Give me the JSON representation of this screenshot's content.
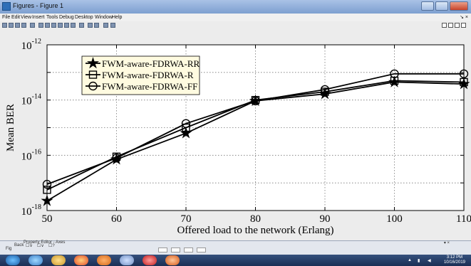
{
  "window": {
    "title": "Figures - Figure 1"
  },
  "menu": [
    "File",
    "Edit",
    "View",
    "Insert",
    "Tools",
    "Debug",
    "Desktop",
    "Window",
    "Help"
  ],
  "menu_right": "↘ ×",
  "icons": {
    "toolbar": [
      "new-figure-icon",
      "open-icon",
      "save-icon",
      "print-icon",
      "edit-plot-icon",
      "zoom-in-icon",
      "zoom-out-icon",
      "pan-icon",
      "rotate-icon",
      "data-cursor-icon",
      "brush-icon",
      "link-icon",
      "colorbar-icon",
      "legend-icon",
      "hide-plot-tools-icon",
      "show-plot-tools-icon"
    ],
    "dock": [
      "tile-icon",
      "split-horizontal-icon",
      "split-vertical-icon",
      "undock-icon"
    ]
  },
  "chart_data": {
    "type": "line",
    "xlabel": "Offered load to the network (Erlang)",
    "ylabel": "Mean BER",
    "x": [
      50,
      60,
      70,
      80,
      90,
      100,
      110
    ],
    "xlim": [
      50,
      110
    ],
    "ylim_exponent": [
      -18,
      -12
    ],
    "yscale": "log",
    "ytick_labels": [
      {
        "base": "10",
        "exp": "-12",
        "value_exp": -12
      },
      {
        "base": "10",
        "exp": "-14",
        "value_exp": -14
      },
      {
        "base": "10",
        "exp": "-16",
        "value_exp": -16
      },
      {
        "base": "10",
        "exp": "-18",
        "value_exp": -18
      }
    ],
    "xtick_labels": [
      "50",
      "60",
      "70",
      "80",
      "90",
      "100",
      "110"
    ],
    "grid": true,
    "legend_position": "top-left",
    "series": [
      {
        "name": "FWM-aware-FDRWA-RR",
        "marker": "star",
        "values_exp": [
          -17.65,
          -16.15,
          -15.2,
          -14.03,
          -13.78,
          -13.35,
          -13.42
        ]
      },
      {
        "name": "FWM-aware-FDRWA-R",
        "marker": "square",
        "values_exp": [
          -17.25,
          -16.05,
          -15.0,
          -14.0,
          -13.7,
          -13.3,
          -13.35
        ]
      },
      {
        "name": "FWM-aware-FDRWA-FF",
        "marker": "circle",
        "values_exp": [
          -17.05,
          -16.1,
          -14.85,
          -14.03,
          -13.62,
          -13.05,
          -13.05
        ]
      }
    ]
  },
  "property_editor": {
    "title": "Property Editor - Axes",
    "close": "▾ ×",
    "fig_label": "Fig",
    "fields": [
      "Back",
      "☐∨",
      "☐∨",
      "☐?"
    ]
  },
  "taskbar": {
    "time": "3:12 PM",
    "date": "10/16/2019"
  }
}
